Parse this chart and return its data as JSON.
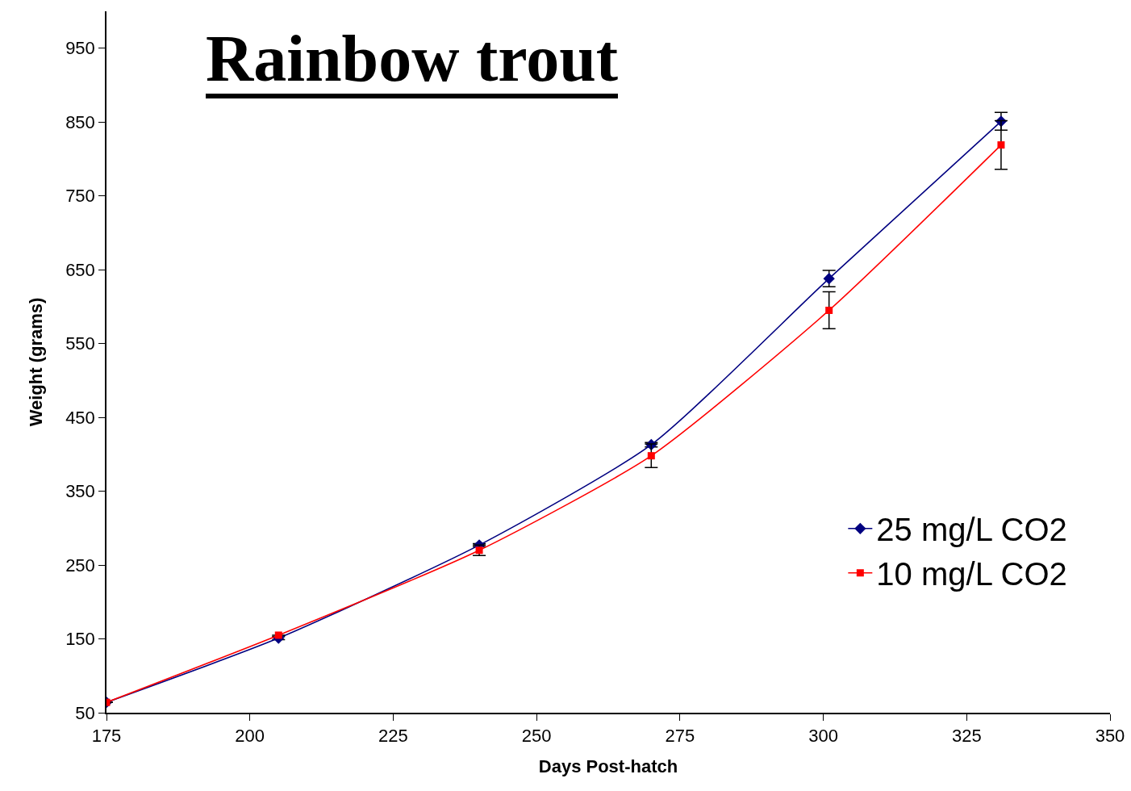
{
  "chart_data": {
    "type": "line",
    "title": "Rainbow trout",
    "xlabel": "Days Post-hatch",
    "ylabel": "Weight (grams)",
    "x": [
      175,
      205,
      240,
      270,
      301,
      331
    ],
    "series": [
      {
        "name": "25 mg/L CO2",
        "color": "#000080",
        "marker": "diamond",
        "values": [
          64,
          151,
          277,
          413,
          638,
          851
        ],
        "errors": [
          null,
          2,
          2,
          3,
          11,
          12
        ]
      },
      {
        "name": "10 mg/L CO2",
        "color": "#ff0000",
        "marker": "square",
        "values": [
          64,
          155,
          270,
          398,
          595,
          819
        ],
        "errors": [
          null,
          null,
          7,
          16,
          25,
          33
        ]
      }
    ],
    "xlim": [
      175,
      350
    ],
    "xticks": [
      175,
      200,
      225,
      250,
      275,
      300,
      325,
      350
    ],
    "ylim": [
      50,
      1000
    ],
    "yticks": [
      50,
      150,
      250,
      350,
      450,
      550,
      650,
      750,
      850,
      950
    ],
    "grid": false,
    "legend": "bottom right",
    "line_style": "solid"
  }
}
